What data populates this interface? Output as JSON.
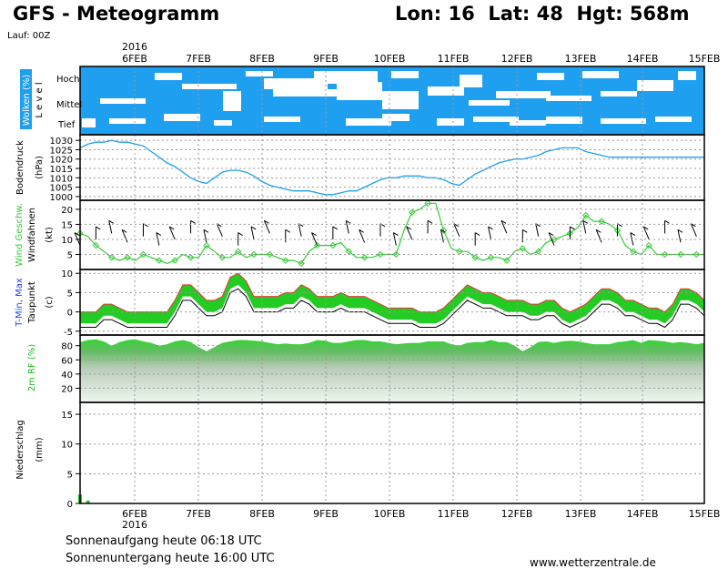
{
  "header": {
    "title": "GFS - Meteogramm",
    "location": "Lon: 16  Lat: 48  Hgt: 568m",
    "run": "Lauf: 00Z"
  },
  "footer": {
    "sunrise": "Sonnenaufgang heute 06:18 UTC",
    "sunset": "Sonnenuntergang heute 16:00 UTC",
    "source": "www.wetterzentrale.de"
  },
  "colors": {
    "cloud": "#1e9ff0",
    "pressure": "#1e9ff0",
    "wind": "#33cc33",
    "temp_fill": "#22cc22",
    "temp_max": "#ee3333",
    "temp_min": "#2244ee",
    "dewpoint": "#000000",
    "rh": "#22dd22",
    "precip": "#22cc22"
  },
  "chart_data": {
    "type": "meteogram",
    "year_label": "2016",
    "dates": [
      "6FEB",
      "7FEB",
      "8FEB",
      "9FEB",
      "10FEB",
      "11FEB",
      "12FEB",
      "13FEB",
      "14FEB",
      "15FEB"
    ],
    "x_range": [
      "2016-02-05T06",
      "2016-02-15T00"
    ],
    "step_hours": 3,
    "panels": [
      {
        "id": "clouds",
        "ylabel": "Wolken (%)",
        "ylabel2": "L e v e l",
        "levels": [
          "Hoch",
          "Mittel",
          "Tief"
        ],
        "note": "Cloud cover by level, blue = cloud, white = clear (approximate)"
      },
      {
        "id": "pressure",
        "ylabel": "Bodendruck",
        "ylabel2": "(hPa)",
        "ylim": [
          998,
          1033
        ],
        "ticks": [
          1000,
          1005,
          1010,
          1015,
          1020,
          1025,
          1030
        ],
        "values": [
          1026,
          1028,
          1029,
          1029,
          1030,
          1029,
          1029,
          1028,
          1027,
          1024,
          1021,
          1018,
          1016,
          1013,
          1010,
          1008,
          1007,
          1010,
          1013,
          1014,
          1014,
          1013,
          1011,
          1008,
          1006,
          1005,
          1004,
          1003,
          1003,
          1003,
          1002,
          1001,
          1001,
          1002,
          1003,
          1003,
          1005,
          1007,
          1009,
          1010,
          1010,
          1011,
          1011,
          1011,
          1010,
          1010,
          1009,
          1007,
          1006,
          1009,
          1012,
          1014,
          1016,
          1018,
          1019,
          1020,
          1020,
          1021,
          1022,
          1024,
          1025,
          1026,
          1026,
          1026,
          1024,
          1023,
          1022,
          1021,
          1021,
          1021,
          1021,
          1021,
          1021,
          1021,
          1021,
          1021,
          1021,
          1021,
          1021,
          1021
        ]
      },
      {
        "id": "wind",
        "ylabel": "Wind Geschw.",
        "ylabel2": "Windfahnen",
        "unit": "(kt)",
        "ylim": [
          0,
          23
        ],
        "ticks": [
          5,
          10,
          15,
          20
        ],
        "values": [
          12,
          11,
          8,
          6,
          4,
          3,
          4,
          3,
          5,
          4,
          3,
          2,
          3,
          5,
          4,
          4,
          8,
          6,
          4,
          4,
          6,
          4,
          5,
          5,
          5,
          4,
          3,
          3,
          2,
          6,
          8,
          8,
          8,
          9,
          6,
          4,
          4,
          4,
          5,
          5,
          5,
          13,
          19,
          20,
          22,
          22,
          13,
          7,
          6,
          6,
          4,
          3,
          4,
          4,
          3,
          6,
          7,
          5,
          6,
          9,
          10,
          11,
          12,
          14,
          18,
          16,
          16,
          15,
          13,
          8,
          6,
          5,
          8,
          5,
          5,
          5,
          5,
          5,
          5,
          5
        ]
      },
      {
        "id": "temperature",
        "ylabel": "T-Min, Max",
        "ylabel2": "Taupunkt",
        "unit": "(c)",
        "ylim": [
          -6,
          11
        ],
        "ticks": [
          -5,
          0,
          5,
          10
        ],
        "tmax": [
          0,
          0,
          0,
          2,
          2,
          1,
          0,
          0,
          0,
          0,
          0,
          0,
          3,
          7,
          7,
          5,
          3,
          3,
          4,
          9,
          10,
          8,
          4,
          4,
          4,
          4,
          5,
          5,
          7,
          6,
          4,
          4,
          4,
          5,
          4,
          4,
          4,
          3,
          2,
          1,
          1,
          1,
          1,
          0,
          0,
          0,
          1,
          3,
          5,
          7,
          6,
          5,
          5,
          4,
          3,
          3,
          3,
          2,
          2,
          3,
          3,
          1,
          0,
          1,
          2,
          4,
          6,
          6,
          5,
          3,
          3,
          2,
          1,
          1,
          0,
          2,
          6,
          6,
          5,
          3
        ]
      },
      {
        "id": "humidity",
        "ylabel": "2m RF (%)",
        "ylim": [
          0,
          95
        ],
        "ticks": [
          20,
          40,
          60,
          80
        ],
        "values": [
          85,
          88,
          89,
          86,
          80,
          85,
          88,
          89,
          86,
          84,
          80,
          82,
          86,
          88,
          85,
          78,
          72,
          78,
          84,
          86,
          88,
          88,
          87,
          86,
          84,
          82,
          83,
          82,
          82,
          84,
          88,
          87,
          84,
          84,
          86,
          88,
          88,
          86,
          86,
          84,
          82,
          83,
          84,
          84,
          86,
          86,
          86,
          82,
          80,
          84,
          85,
          85,
          88,
          85,
          85,
          80,
          72,
          78,
          85,
          86,
          84,
          86,
          87,
          86,
          84,
          82,
          82,
          82,
          85,
          86,
          88,
          84,
          88,
          87,
          86,
          84,
          85,
          84,
          82,
          84
        ]
      },
      {
        "id": "precipitation",
        "ylabel": "Niederschlag",
        "ylabel2": "(mm)",
        "ylim": [
          0,
          17
        ],
        "ticks": [
          0,
          5,
          10,
          15
        ],
        "values": [
          1.5,
          0.5,
          0,
          0,
          0,
          0,
          0,
          0,
          0,
          0,
          0,
          0,
          0,
          0,
          0,
          0,
          0,
          0,
          0,
          0,
          0,
          0,
          0,
          0,
          0,
          0,
          0,
          0,
          0,
          0,
          0,
          0,
          0,
          0,
          0,
          0,
          0,
          0,
          0,
          0,
          0,
          0,
          0,
          0,
          0,
          0,
          0,
          0,
          0,
          0,
          0,
          0,
          0,
          0,
          0,
          0,
          0,
          0,
          0,
          0,
          0,
          0,
          0,
          0,
          0,
          0,
          0,
          0,
          0,
          0,
          0,
          0,
          0,
          0,
          0,
          0,
          0,
          0,
          0,
          0
        ]
      }
    ]
  }
}
